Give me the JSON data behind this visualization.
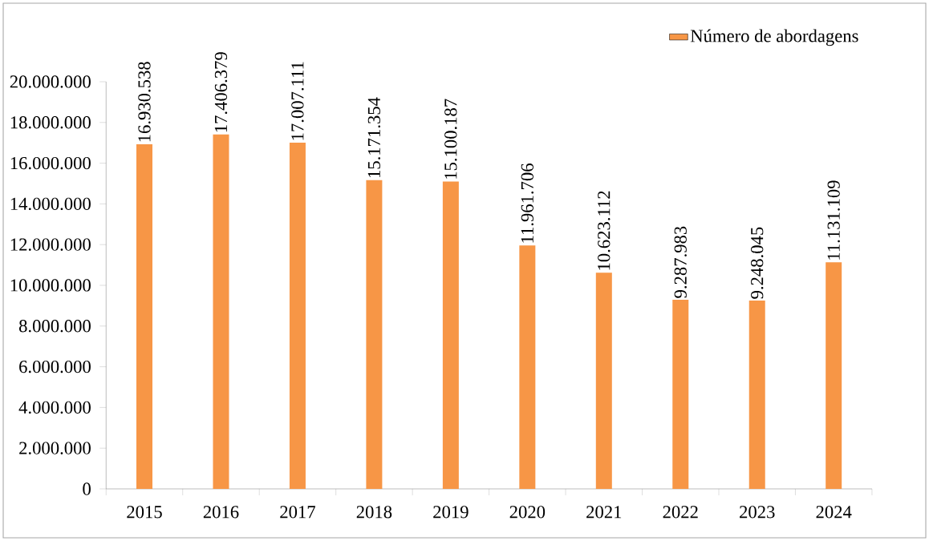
{
  "chart_data": {
    "type": "bar",
    "categories": [
      "2015",
      "2016",
      "2017",
      "2018",
      "2019",
      "2020",
      "2021",
      "2022",
      "2023",
      "2024"
    ],
    "series": [
      {
        "name": "Número de abordagens",
        "color": "#f79646",
        "values": [
          16930538,
          17406379,
          17007111,
          15171354,
          15100187,
          11961706,
          10623112,
          9287983,
          9248045,
          11131109
        ],
        "value_labels": [
          "16.930.538",
          "17.406.379",
          "17.007.111",
          "15.171.354",
          "15.100.187",
          "11.961.706",
          "10.623.112",
          "9.287.983",
          "9.248.045",
          "11.131.109"
        ]
      }
    ],
    "ylim": [
      0,
      20000000
    ],
    "yticks": [
      {
        "value": 0,
        "label": "0"
      },
      {
        "value": 2000000,
        "label": "2.000.000"
      },
      {
        "value": 4000000,
        "label": "4.000.000"
      },
      {
        "value": 6000000,
        "label": "6.000.000"
      },
      {
        "value": 8000000,
        "label": "8.000.000"
      },
      {
        "value": 10000000,
        "label": "10.000.000"
      },
      {
        "value": 12000000,
        "label": "12.000.000"
      },
      {
        "value": 14000000,
        "label": "14.000.000"
      },
      {
        "value": 16000000,
        "label": "16.000.000"
      },
      {
        "value": 18000000,
        "label": "18.000.000"
      },
      {
        "value": 20000000,
        "label": "20.000.000"
      }
    ],
    "grid": false,
    "legend": "top right"
  }
}
